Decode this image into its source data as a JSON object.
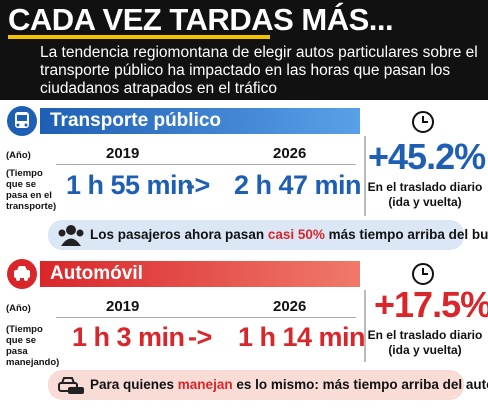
{
  "header": {
    "title": "CADA VEZ TARDAS MÁS...",
    "subtitle": "La tendencia regiomontana de elegir autos particulares sobre el transporte público ha impactado en las horas que pasan los ciudadanos atrapados en el tráfico"
  },
  "sections": [
    {
      "label": "Transporte público",
      "year_label": "(Año)",
      "time_label": "(Tiempo que se pasa en el transporte)",
      "years": [
        "2019",
        "2026"
      ],
      "times": [
        "1 h 55 min",
        "2 h 47 min"
      ],
      "arrow": "->",
      "change": "+45.2%",
      "change_note": "En el traslado diario (ida y vuelta)",
      "note_parts": [
        "Los pasajeros ahora pasan ",
        "casi 50%",
        " más tiempo arriba del bus"
      ]
    },
    {
      "label": "Automóvil",
      "year_label": "(Año)",
      "time_label": "(Tiempo que se pasa manejando)",
      "years": [
        "2019",
        "2026"
      ],
      "times": [
        "1 h 3 min",
        "1 h 14 min"
      ],
      "arrow": "->",
      "change": "+17.5%",
      "change_note": "En el traslado diario (ida y vuelta)",
      "note_parts": [
        "Para quienes ",
        "manejan",
        " es lo mismo: más tiempo arriba del auto"
      ]
    }
  ]
}
